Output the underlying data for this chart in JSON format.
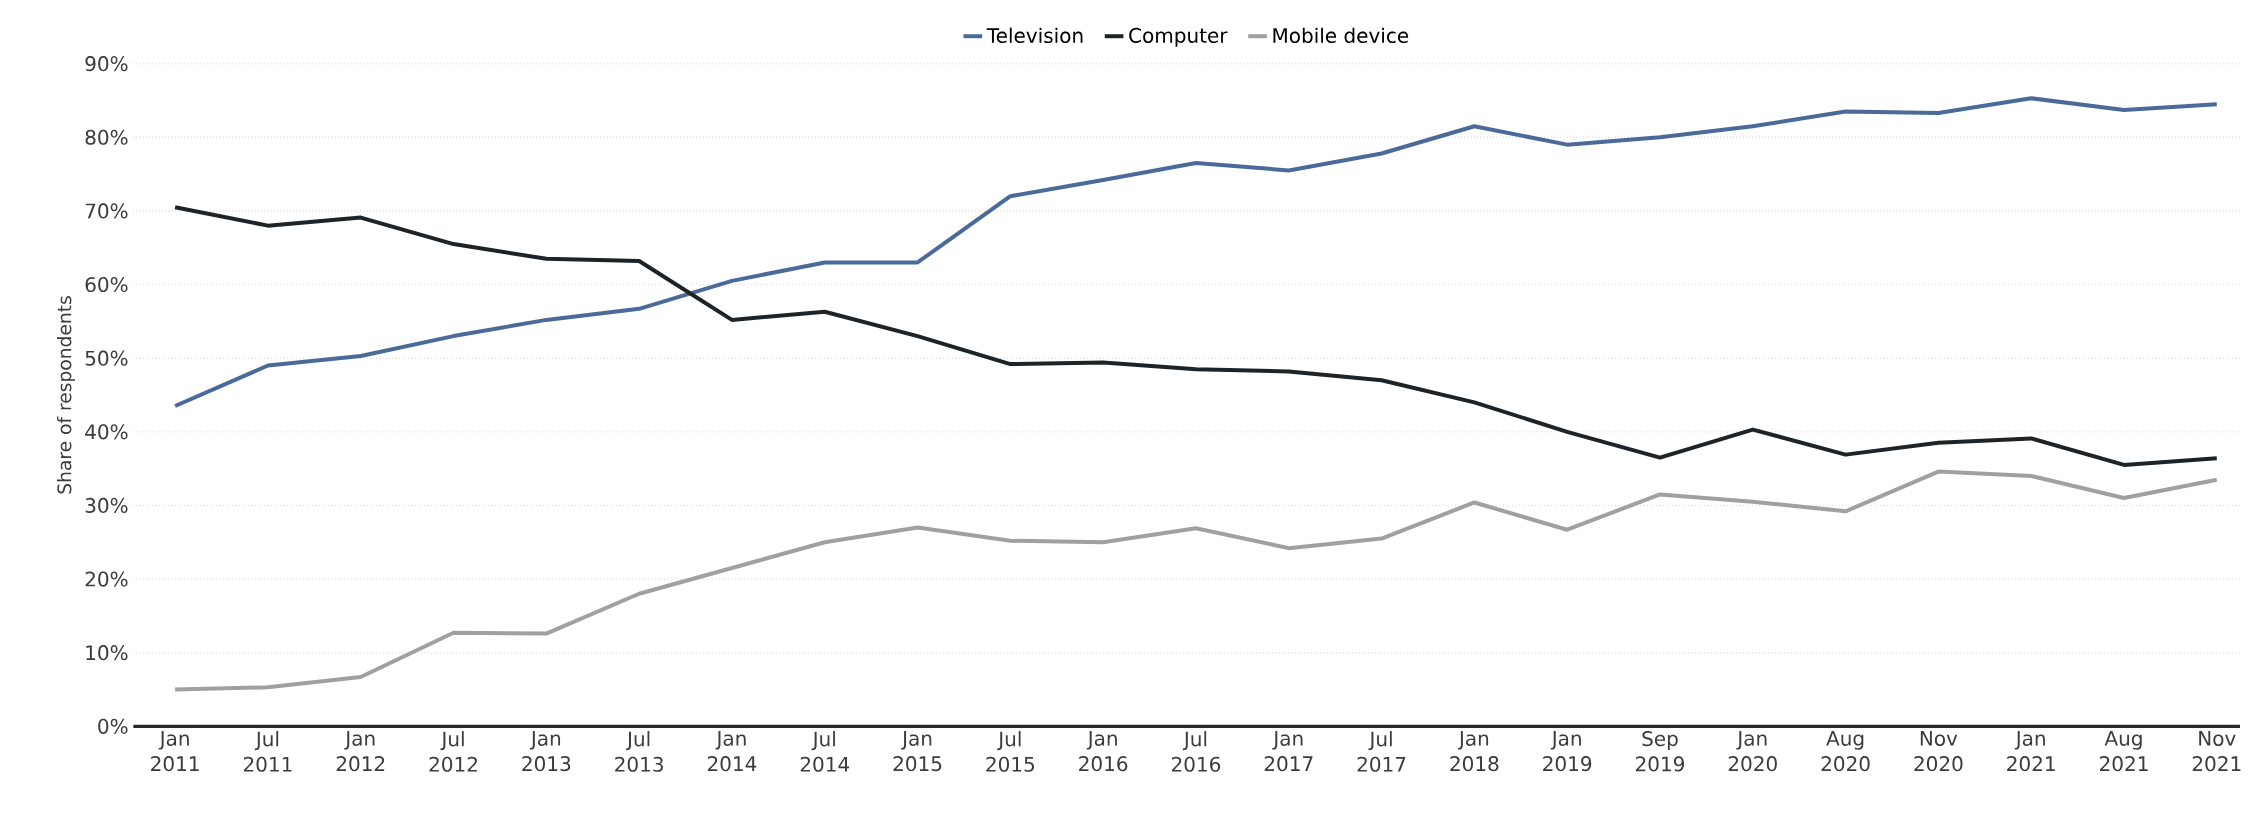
{
  "chart_data": {
    "type": "line",
    "ylabel": "Share of respondents",
    "categories": [
      "Jan 2011",
      "Jul 2011",
      "Jan 2012",
      "Jul 2012",
      "Jan 2013",
      "Jul 2013",
      "Jan 2014",
      "Jul 2014",
      "Jan 2015",
      "Jul 2015",
      "Jan 2016",
      "Jul 2016",
      "Jan 2017",
      "Jul 2017",
      "Jan 2018",
      "Jan 2019",
      "Sep 2019",
      "Jan 2020",
      "Aug 2020",
      "Nov 2020",
      "Jan 2021",
      "Aug 2021",
      "Nov 2021"
    ],
    "series": [
      {
        "name": "Television",
        "color": "#4a6a9a",
        "values": [
          43.5,
          49,
          50.3,
          53,
          55.2,
          56.7,
          60.5,
          63,
          63,
          72,
          74.2,
          76.5,
          75.5,
          77.8,
          81.5,
          79,
          80,
          81.5,
          83.5,
          83.3,
          85.3,
          83.7,
          84.5
        ]
      },
      {
        "name": "Computer",
        "color": "#1c2329",
        "values": [
          70.5,
          68,
          69.1,
          65.5,
          63.5,
          63.2,
          55.2,
          56.3,
          53,
          49.2,
          49.4,
          48.5,
          48.2,
          47,
          44,
          40,
          36.5,
          40.3,
          36.9,
          38.5,
          39.1,
          35.5,
          36.4
        ]
      },
      {
        "name": "Mobile device",
        "color": "#a0a0a0",
        "values": [
          5,
          5.3,
          6.7,
          12.7,
          12.6,
          18,
          21.5,
          25,
          27,
          25.2,
          25,
          26.9,
          24.2,
          25.5,
          30.4,
          26.7,
          31.5,
          30.5,
          29.2,
          34.6,
          34,
          31,
          33.5
        ]
      }
    ],
    "ylim": [
      0,
      90
    ],
    "yticks": [
      {
        "value": 0,
        "label": "0%"
      },
      {
        "value": 10,
        "label": "10%"
      },
      {
        "value": 20,
        "label": "20%"
      },
      {
        "value": 30,
        "label": "30%"
      },
      {
        "value": 40,
        "label": "40%"
      },
      {
        "value": 50,
        "label": "50%"
      },
      {
        "value": 60,
        "label": "60%"
      },
      {
        "value": 70,
        "label": "70%"
      },
      {
        "value": 80,
        "label": "80%"
      },
      {
        "value": 90,
        "label": "90%"
      }
    ],
    "grid": "y",
    "legend": "top",
    "marker": "none",
    "line_style": "solid"
  }
}
